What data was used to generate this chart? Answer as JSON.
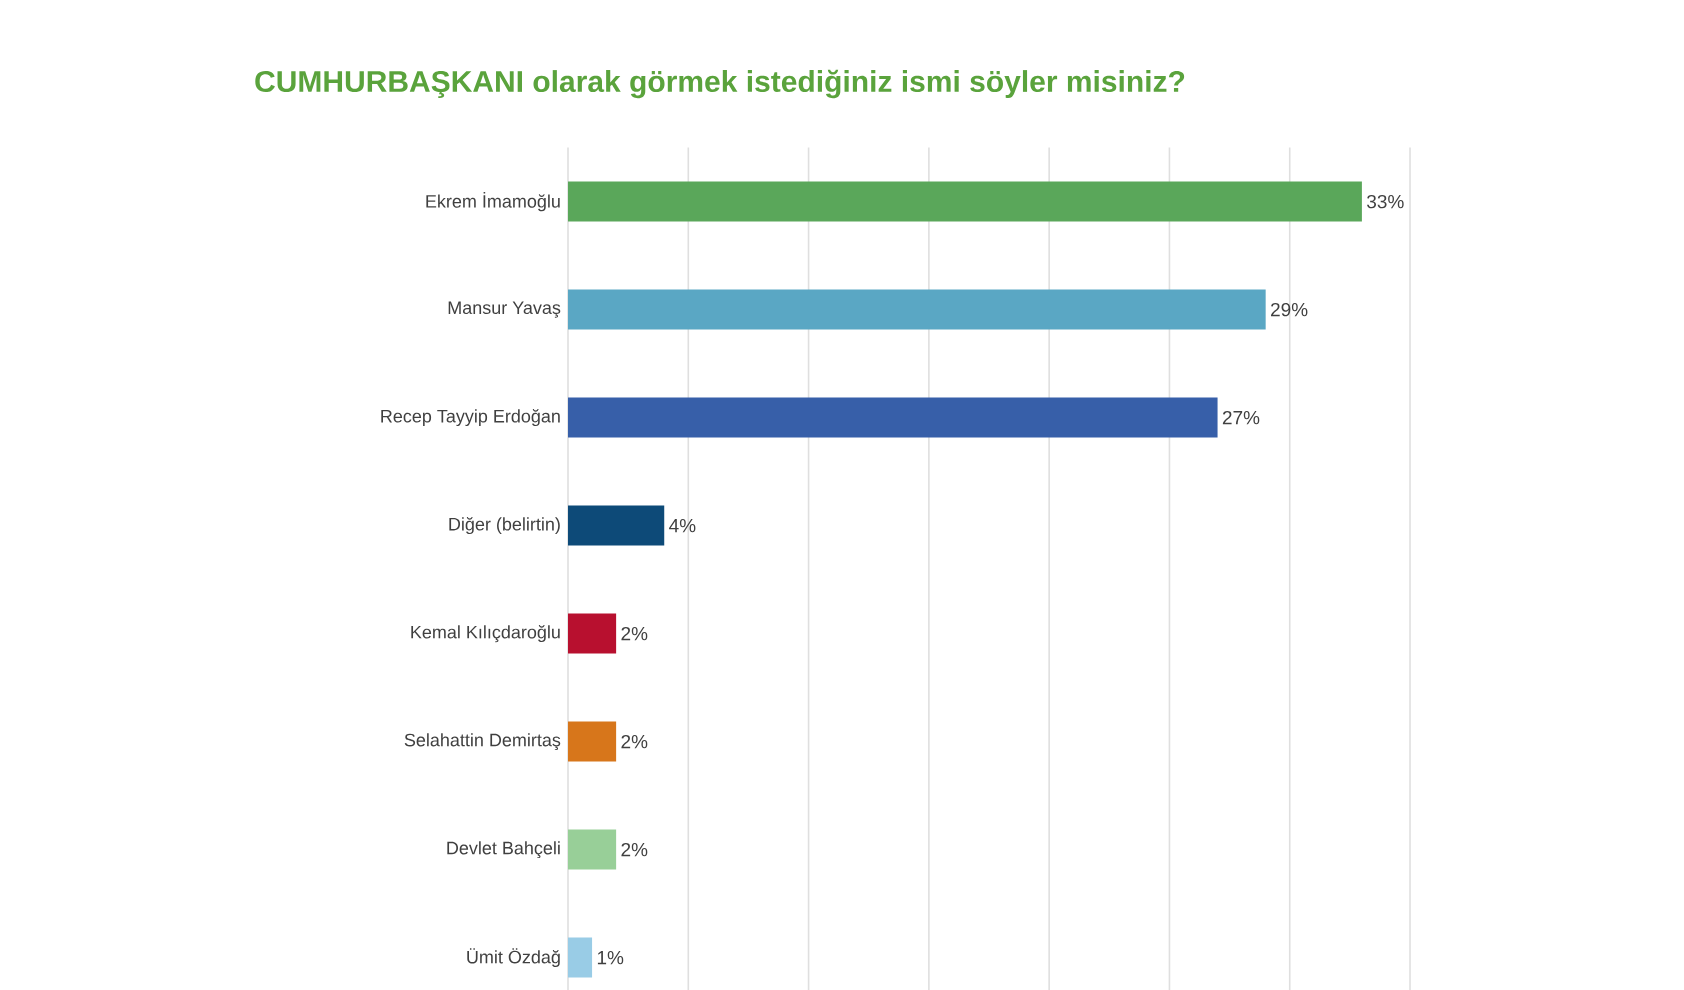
{
  "chart_data": {
    "type": "bar",
    "orientation": "horizontal",
    "title": "CUMHURBAŞKANI olarak görmek istediğiniz ismi söyler misiniz?",
    "categories": [
      "Ekrem İmamoğlu",
      "Mansur Yavaş",
      "Recep Tayyip Erdoğan",
      "Diğer (belirtin)",
      "Kemal Kılıçdaroğlu",
      "Selahattin Demirtaş",
      "Devlet Bahçeli",
      "Ümit Özdağ"
    ],
    "values": [
      33,
      29,
      27,
      4,
      2,
      2,
      2,
      1
    ],
    "value_labels": [
      "33%",
      "29%",
      "27%",
      "4%",
      "2%",
      "2%",
      "2%",
      "1%"
    ],
    "colors": [
      "#5aa75a",
      "#5aa7c4",
      "#375fa9",
      "#0d4a78",
      "#b8102f",
      "#d7761b",
      "#98cf98",
      "#99cce6"
    ],
    "xlim": [
      0,
      35
    ],
    "xticks": [
      {
        "value": 0,
        "label": null
      },
      {
        "value": 5,
        "label": null
      },
      {
        "value": 10,
        "label": null
      },
      {
        "value": 15,
        "label": null
      },
      {
        "value": 20,
        "label": null
      },
      {
        "value": 25,
        "label": null
      },
      {
        "value": 30,
        "label": null
      },
      {
        "value": 35,
        "label": null
      }
    ],
    "tick_labels": "y",
    "grid": "x"
  }
}
